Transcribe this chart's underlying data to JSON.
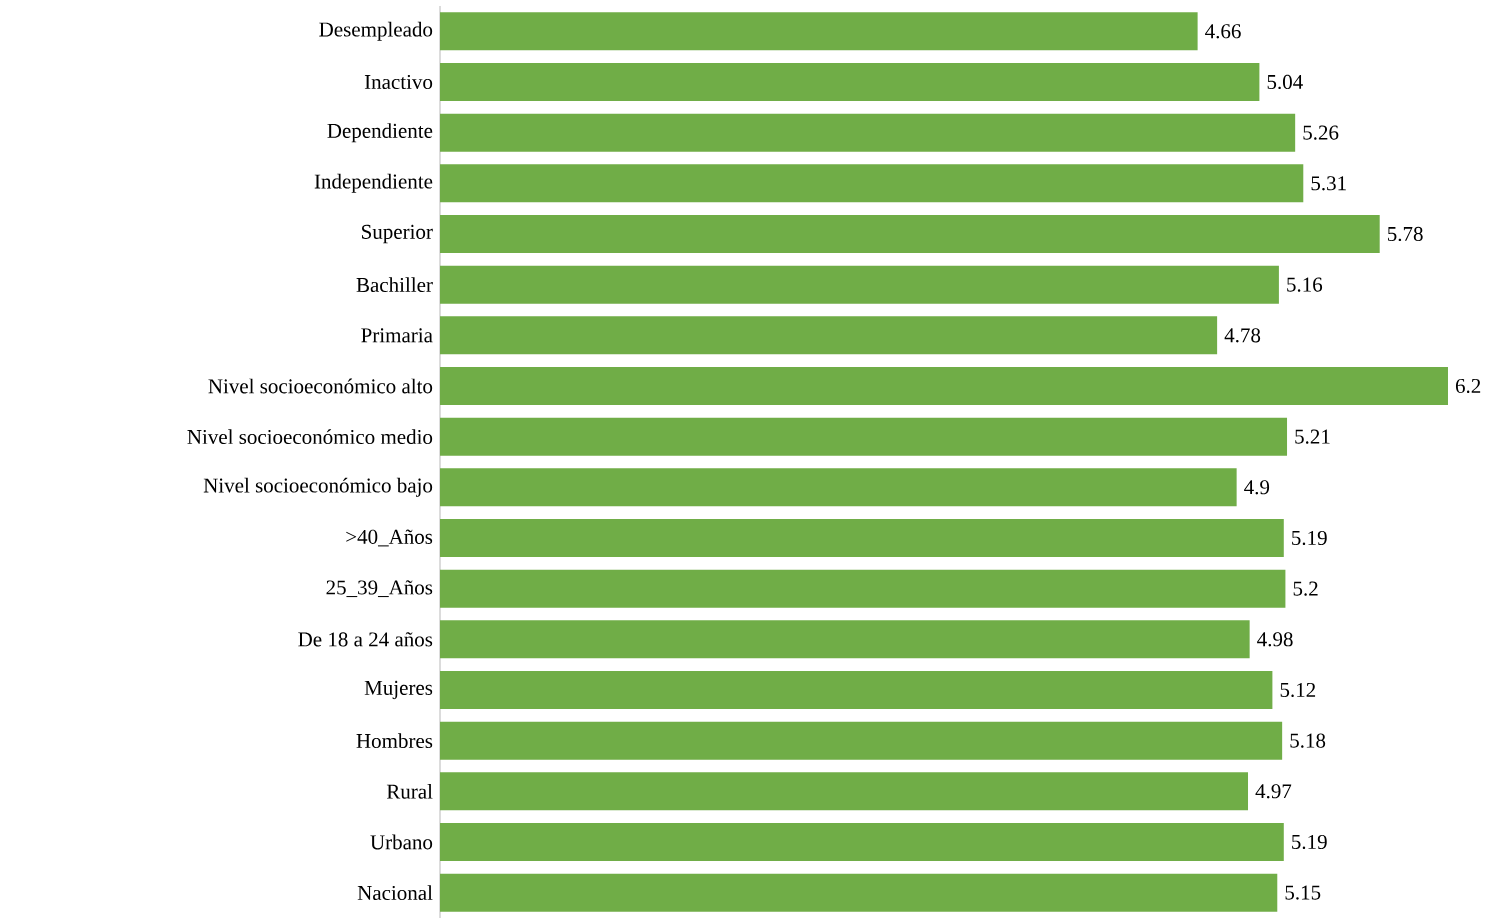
{
  "chart_data": {
    "type": "bar",
    "orientation": "horizontal",
    "data_labels": true,
    "color": "#70ad47",
    "categories": [
      "Desempleado",
      "Inactivo",
      "Dependiente",
      "Independiente",
      "Superior",
      "Bachiller",
      "Primaria",
      "Nivel socioeconómico alto",
      "Nivel socioeconómico medio",
      "Nivel socioeconómico bajo",
      ">40_Años",
      "25_39_Años",
      "De 18 a 24 años",
      "Mujeres",
      "Hombres",
      "Rural",
      "Urbano",
      "Nacional"
    ],
    "values": [
      4.66,
      5.04,
      5.26,
      5.31,
      5.78,
      5.16,
      4.78,
      6.2,
      5.21,
      4.9,
      5.19,
      5.2,
      4.98,
      5.12,
      5.18,
      4.97,
      5.19,
      5.15
    ]
  }
}
